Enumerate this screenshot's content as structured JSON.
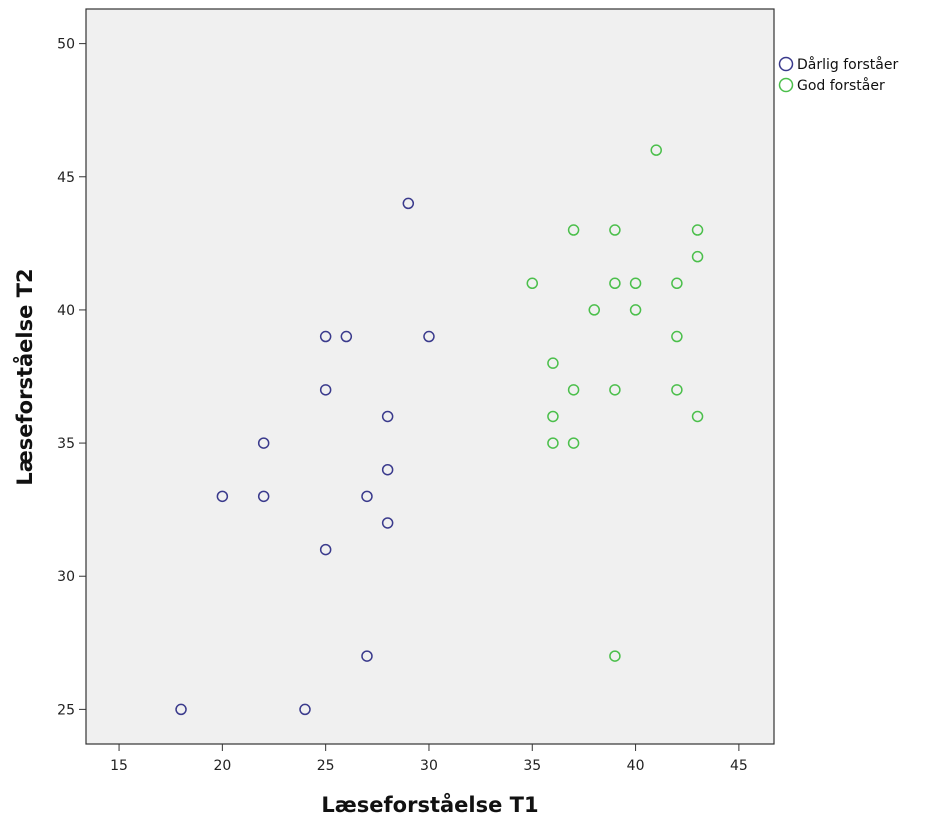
{
  "chart_data": {
    "type": "scatter",
    "xlabel": "Læseforståelse T1",
    "ylabel": "Læseforståelse T2",
    "xlim": [
      13.4,
      46.7
    ],
    "ylim": [
      23.7,
      51.3
    ],
    "xticks": [
      15,
      20,
      25,
      30,
      35,
      40,
      45
    ],
    "yticks": [
      25,
      30,
      35,
      40,
      45,
      50
    ],
    "grid": false,
    "plot_background": "#f0f0f0",
    "legend_position": "right-top",
    "series": [
      {
        "name": "Dårlig forståer",
        "color": "#3a3a8c",
        "points": [
          {
            "x": 18,
            "y": 25
          },
          {
            "x": 24,
            "y": 25
          },
          {
            "x": 27,
            "y": 27
          },
          {
            "x": 25,
            "y": 31
          },
          {
            "x": 28,
            "y": 32
          },
          {
            "x": 20,
            "y": 33
          },
          {
            "x": 22,
            "y": 33
          },
          {
            "x": 27,
            "y": 33
          },
          {
            "x": 28,
            "y": 34
          },
          {
            "x": 22,
            "y": 35
          },
          {
            "x": 28,
            "y": 36
          },
          {
            "x": 25,
            "y": 37
          },
          {
            "x": 25,
            "y": 39
          },
          {
            "x": 26,
            "y": 39
          },
          {
            "x": 30,
            "y": 39
          },
          {
            "x": 29,
            "y": 44
          }
        ]
      },
      {
        "name": "God forståer",
        "color": "#4bbf4b",
        "points": [
          {
            "x": 39,
            "y": 27
          },
          {
            "x": 36,
            "y": 35
          },
          {
            "x": 37,
            "y": 35
          },
          {
            "x": 36,
            "y": 36
          },
          {
            "x": 43,
            "y": 36
          },
          {
            "x": 37,
            "y": 37
          },
          {
            "x": 39,
            "y": 37
          },
          {
            "x": 42,
            "y": 37
          },
          {
            "x": 36,
            "y": 38
          },
          {
            "x": 42,
            "y": 39
          },
          {
            "x": 38,
            "y": 40
          },
          {
            "x": 40,
            "y": 40
          },
          {
            "x": 35,
            "y": 41
          },
          {
            "x": 39,
            "y": 41
          },
          {
            "x": 40,
            "y": 41
          },
          {
            "x": 42,
            "y": 41
          },
          {
            "x": 43,
            "y": 42
          },
          {
            "x": 37,
            "y": 43
          },
          {
            "x": 39,
            "y": 43
          },
          {
            "x": 43,
            "y": 43
          },
          {
            "x": 41,
            "y": 46
          }
        ]
      }
    ]
  }
}
